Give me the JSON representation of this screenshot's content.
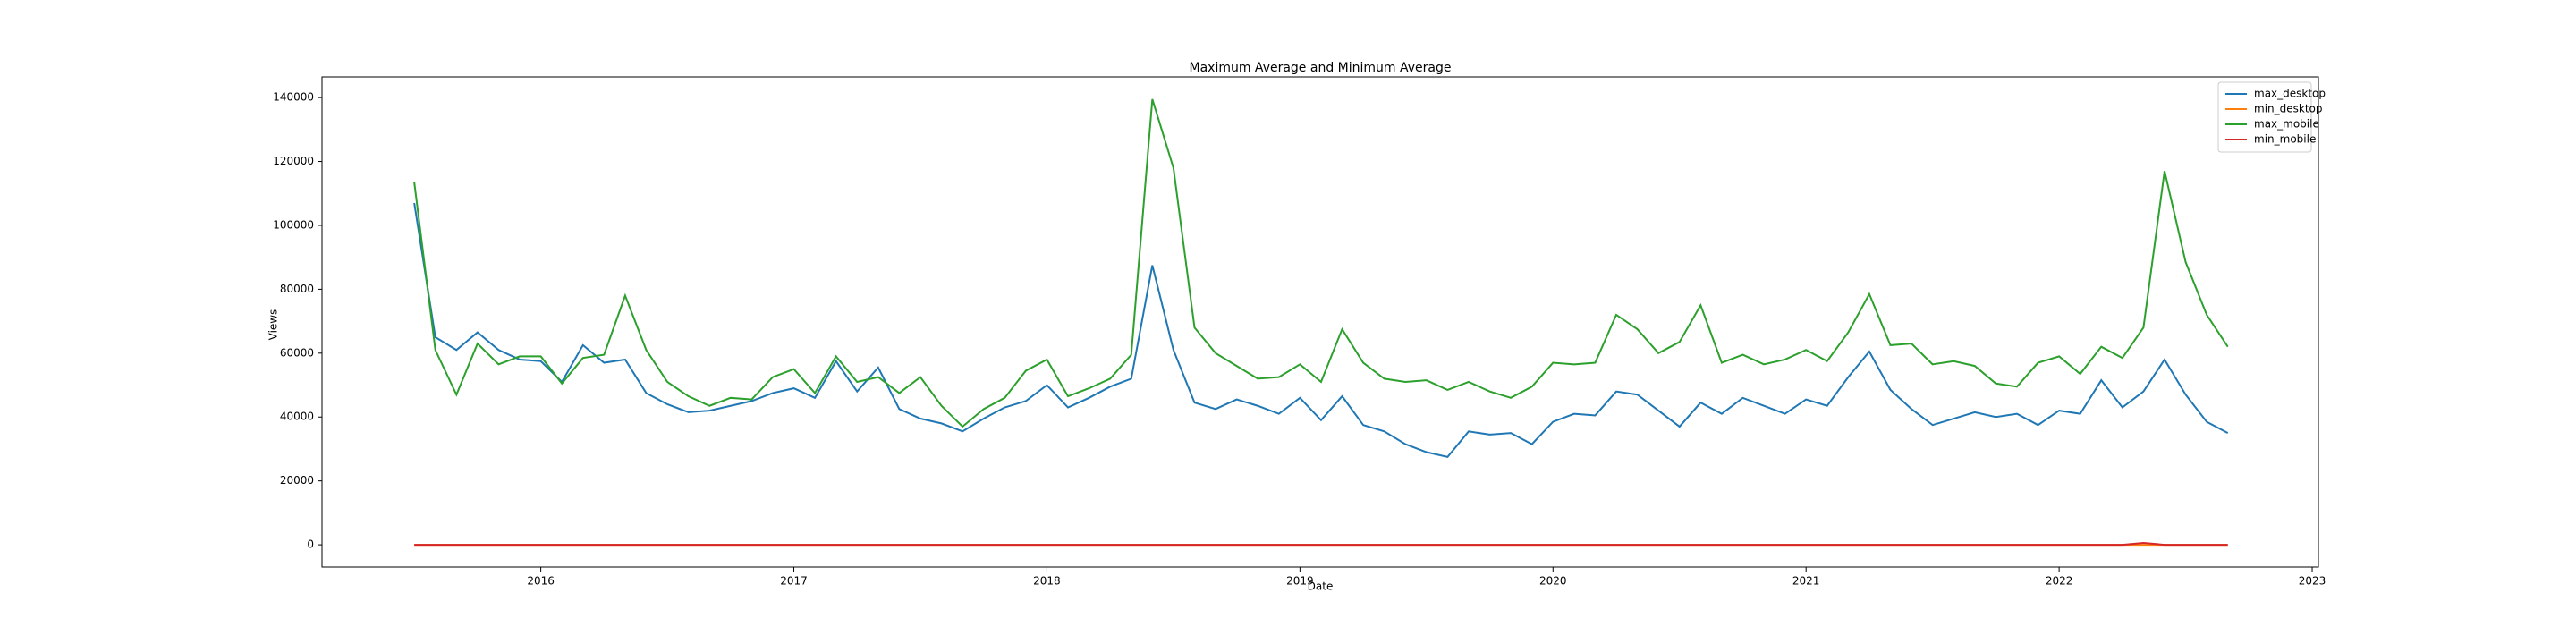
{
  "chart_data": {
    "type": "line",
    "title": "Maximum Average and Minimum Average",
    "x_label": "Date",
    "y_label": "Views",
    "x": [
      "2015-07",
      "2015-08",
      "2015-09",
      "2015-10",
      "2015-11",
      "2015-12",
      "2016-01",
      "2016-02",
      "2016-03",
      "2016-04",
      "2016-05",
      "2016-06",
      "2016-07",
      "2016-08",
      "2016-09",
      "2016-10",
      "2016-11",
      "2016-12",
      "2017-01",
      "2017-02",
      "2017-03",
      "2017-04",
      "2017-05",
      "2017-06",
      "2017-07",
      "2017-08",
      "2017-09",
      "2017-10",
      "2017-11",
      "2017-12",
      "2018-01",
      "2018-02",
      "2018-03",
      "2018-04",
      "2018-05",
      "2018-06",
      "2018-07",
      "2018-08",
      "2018-09",
      "2018-10",
      "2018-11",
      "2018-12",
      "2019-01",
      "2019-02",
      "2019-03",
      "2019-04",
      "2019-05",
      "2019-06",
      "2019-07",
      "2019-08",
      "2019-09",
      "2019-10",
      "2019-11",
      "2019-12",
      "2020-01",
      "2020-02",
      "2020-03",
      "2020-04",
      "2020-05",
      "2020-06",
      "2020-07",
      "2020-08",
      "2020-09",
      "2020-10",
      "2020-11",
      "2020-12",
      "2021-01",
      "2021-02",
      "2021-03",
      "2021-04",
      "2021-05",
      "2021-06",
      "2021-07",
      "2021-08",
      "2021-09",
      "2021-10",
      "2021-11",
      "2021-12",
      "2022-01",
      "2022-02",
      "2022-03",
      "2022-04",
      "2022-05",
      "2022-06",
      "2022-07",
      "2022-08",
      "2022-09"
    ],
    "series": [
      {
        "name": "max_desktop",
        "color": "#1f77b4",
        "values": [
          107000,
          65000,
          61000,
          66500,
          61000,
          58000,
          57500,
          51000,
          62500,
          57000,
          58000,
          47500,
          44000,
          41500,
          42000,
          43500,
          45000,
          47500,
          49000,
          46000,
          57500,
          48000,
          55500,
          42500,
          39500,
          38000,
          35500,
          39500,
          43000,
          45000,
          50000,
          43000,
          46000,
          49500,
          52000,
          87500,
          61000,
          44500,
          42500,
          45500,
          43500,
          41000,
          46000,
          39000,
          46500,
          37500,
          35500,
          31500,
          29000,
          27500,
          35500,
          34500,
          35000,
          31500,
          38500,
          41000,
          40500,
          48000,
          47000,
          42000,
          37000,
          44500,
          41000,
          46000,
          43500,
          41000,
          45500,
          43500,
          52500,
          60500,
          48500,
          42500,
          37500,
          39500,
          41500,
          40000,
          41000,
          37500,
          42000,
          41000,
          51500,
          43000,
          48000,
          58000,
          47000,
          38500,
          35000
        ]
      },
      {
        "name": "min_desktop",
        "color": "#ff7f0e",
        "values": [
          0,
          0,
          0,
          0,
          0,
          0,
          0,
          0,
          0,
          0,
          0,
          0,
          0,
          0,
          0,
          0,
          0,
          0,
          0,
          0,
          0,
          0,
          0,
          0,
          0,
          0,
          0,
          0,
          0,
          0,
          0,
          0,
          0,
          0,
          0,
          0,
          0,
          0,
          0,
          0,
          0,
          0,
          0,
          0,
          0,
          0,
          0,
          0,
          0,
          0,
          0,
          0,
          0,
          0,
          0,
          0,
          0,
          0,
          0,
          0,
          0,
          0,
          0,
          0,
          0,
          0,
          0,
          0,
          0,
          0,
          0,
          0,
          0,
          0,
          0,
          0,
          0,
          0,
          0,
          0,
          0,
          0,
          0,
          0,
          0,
          0,
          0
        ]
      },
      {
        "name": "max_mobile",
        "color": "#2ca02c",
        "values": [
          113500,
          61000,
          47000,
          63000,
          56500,
          59000,
          59000,
          50500,
          58500,
          59500,
          78000,
          61000,
          51000,
          46500,
          43500,
          46000,
          45500,
          52500,
          55000,
          47500,
          59000,
          51000,
          52500,
          47500,
          52500,
          43500,
          37000,
          42500,
          46000,
          54500,
          58000,
          46500,
          49000,
          52000,
          59500,
          139500,
          118000,
          68000,
          60000,
          56000,
          52000,
          52500,
          56500,
          51000,
          67500,
          57000,
          52000,
          51000,
          51500,
          48500,
          51000,
          48000,
          46000,
          49500,
          57000,
          56500,
          57000,
          72000,
          67500,
          60000,
          63500,
          75000,
          57000,
          59500,
          56500,
          58000,
          61000,
          57500,
          66500,
          78500,
          62500,
          63000,
          56500,
          57500,
          56000,
          50500,
          49500,
          57000,
          59000,
          53500,
          62000,
          58500,
          68000,
          117000,
          88500,
          72000,
          62000
        ]
      },
      {
        "name": "min_mobile",
        "color": "#d62728",
        "values": [
          0,
          0,
          0,
          0,
          0,
          0,
          0,
          0,
          0,
          0,
          0,
          0,
          0,
          0,
          0,
          0,
          0,
          0,
          0,
          0,
          0,
          0,
          0,
          0,
          0,
          0,
          0,
          0,
          0,
          0,
          0,
          0,
          0,
          0,
          0,
          0,
          0,
          0,
          0,
          0,
          0,
          0,
          0,
          0,
          0,
          0,
          0,
          0,
          0,
          0,
          0,
          0,
          0,
          0,
          0,
          0,
          0,
          0,
          0,
          0,
          0,
          0,
          0,
          0,
          0,
          0,
          0,
          0,
          0,
          0,
          0,
          0,
          0,
          0,
          0,
          0,
          0,
          0,
          0,
          0,
          0,
          0,
          600,
          0,
          0,
          0,
          0
        ]
      }
    ],
    "xlim": [
      "2015-02-20",
      "2023-01-10"
    ],
    "xticks": [
      "2016",
      "2017",
      "2018",
      "2019",
      "2020",
      "2021",
      "2022",
      "2023"
    ],
    "ylim": [
      -6975,
      146475
    ],
    "yticks": [
      0,
      20000,
      40000,
      60000,
      80000,
      100000,
      120000,
      140000
    ],
    "legend": "upper right"
  }
}
